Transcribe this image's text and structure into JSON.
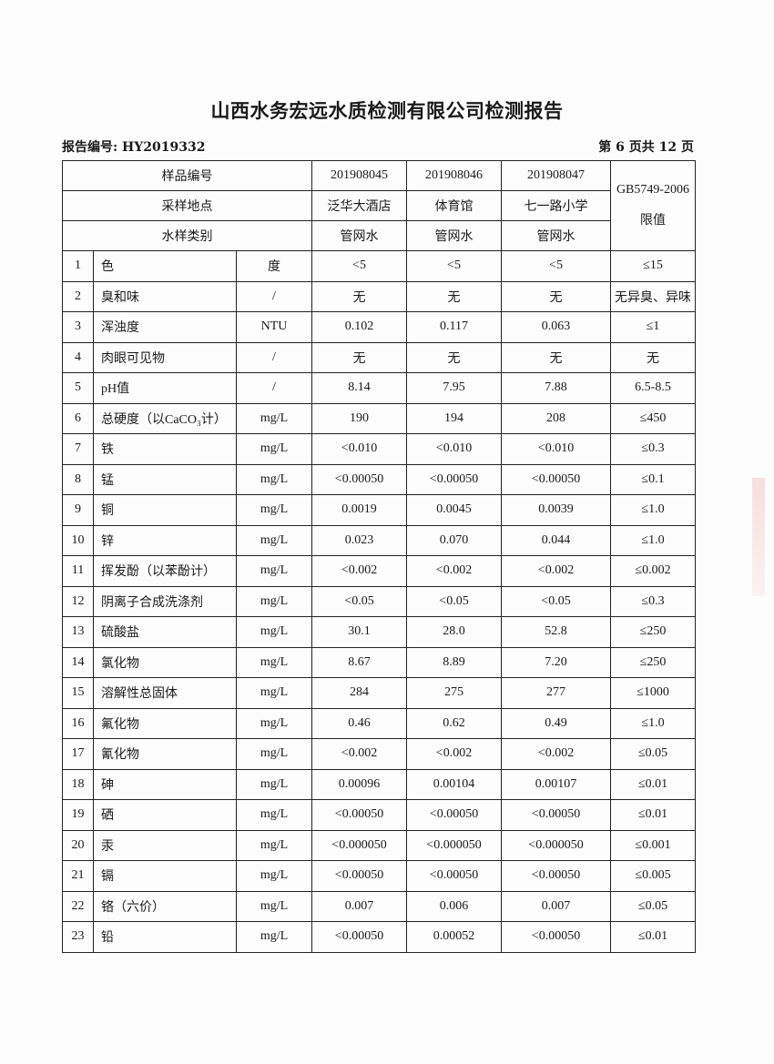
{
  "title": "山西水务宏远水质检测有限公司检测报告",
  "report_no": "报告编号: HY2019332",
  "page_info": "第 6 页共 12 页",
  "header": {
    "sample_id_label": "样品编号",
    "location_label": "采样地点",
    "type_label": "水样类别",
    "limit_label": "GB5749-2006 限值",
    "samples": [
      {
        "id": "201908045",
        "location": "泛华大酒店",
        "type": "管网水"
      },
      {
        "id": "201908046",
        "location": "体育馆",
        "type": "管网水"
      },
      {
        "id": "201908047",
        "location": "七一路小学",
        "type": "管网水"
      }
    ]
  },
  "rows": [
    {
      "no": "1",
      "item": "色",
      "unit": "度",
      "v": [
        "<5",
        "<5",
        "<5"
      ],
      "limit": "≤15"
    },
    {
      "no": "2",
      "item": "臭和味",
      "unit": "/",
      "v": [
        "无",
        "无",
        "无"
      ],
      "limit": "无异臭、异味"
    },
    {
      "no": "3",
      "item": "浑浊度",
      "unit": "NTU",
      "v": [
        "0.102",
        "0.117",
        "0.063"
      ],
      "limit": "≤1"
    },
    {
      "no": "4",
      "item": "肉眼可见物",
      "unit": "/",
      "v": [
        "无",
        "无",
        "无"
      ],
      "limit": "无"
    },
    {
      "no": "5",
      "item": "pH值",
      "unit": "/",
      "v": [
        "8.14",
        "7.95",
        "7.88"
      ],
      "limit": "6.5-8.5"
    },
    {
      "no": "6",
      "item": "总硬度（以CaCO₃计）",
      "unit": "mg/L",
      "v": [
        "190",
        "194",
        "208"
      ],
      "limit": "≤450"
    },
    {
      "no": "7",
      "item": "铁",
      "unit": "mg/L",
      "v": [
        "<0.010",
        "<0.010",
        "<0.010"
      ],
      "limit": "≤0.3"
    },
    {
      "no": "8",
      "item": "锰",
      "unit": "mg/L",
      "v": [
        "<0.00050",
        "<0.00050",
        "<0.00050"
      ],
      "limit": "≤0.1"
    },
    {
      "no": "9",
      "item": "铜",
      "unit": "mg/L",
      "v": [
        "0.0019",
        "0.0045",
        "0.0039"
      ],
      "limit": "≤1.0"
    },
    {
      "no": "10",
      "item": "锌",
      "unit": "mg/L",
      "v": [
        "0.023",
        "0.070",
        "0.044"
      ],
      "limit": "≤1.0"
    },
    {
      "no": "11",
      "item": "挥发酚（以苯酚计）",
      "unit": "mg/L",
      "v": [
        "<0.002",
        "<0.002",
        "<0.002"
      ],
      "limit": "≤0.002"
    },
    {
      "no": "12",
      "item": "阴离子合成洗涤剂",
      "unit": "mg/L",
      "v": [
        "<0.05",
        "<0.05",
        "<0.05"
      ],
      "limit": "≤0.3"
    },
    {
      "no": "13",
      "item": "硫酸盐",
      "unit": "mg/L",
      "v": [
        "30.1",
        "28.0",
        "52.8"
      ],
      "limit": "≤250"
    },
    {
      "no": "14",
      "item": "氯化物",
      "unit": "mg/L",
      "v": [
        "8.67",
        "8.89",
        "7.20"
      ],
      "limit": "≤250"
    },
    {
      "no": "15",
      "item": "溶解性总固体",
      "unit": "mg/L",
      "v": [
        "284",
        "275",
        "277"
      ],
      "limit": "≤1000"
    },
    {
      "no": "16",
      "item": "氟化物",
      "unit": "mg/L",
      "v": [
        "0.46",
        "0.62",
        "0.49"
      ],
      "limit": "≤1.0"
    },
    {
      "no": "17",
      "item": "氰化物",
      "unit": "mg/L",
      "v": [
        "<0.002",
        "<0.002",
        "<0.002"
      ],
      "limit": "≤0.05"
    },
    {
      "no": "18",
      "item": "砷",
      "unit": "mg/L",
      "v": [
        "0.00096",
        "0.00104",
        "0.00107"
      ],
      "limit": "≤0.01"
    },
    {
      "no": "19",
      "item": "硒",
      "unit": "mg/L",
      "v": [
        "<0.00050",
        "<0.00050",
        "<0.00050"
      ],
      "limit": "≤0.01"
    },
    {
      "no": "20",
      "item": "汞",
      "unit": "mg/L",
      "v": [
        "<0.000050",
        "<0.000050",
        "<0.000050"
      ],
      "limit": "≤0.001"
    },
    {
      "no": "21",
      "item": "镉",
      "unit": "mg/L",
      "v": [
        "<0.00050",
        "<0.00050",
        "<0.00050"
      ],
      "limit": "≤0.005"
    },
    {
      "no": "22",
      "item": "铬（六价）",
      "unit": "mg/L",
      "v": [
        "0.007",
        "0.006",
        "0.007"
      ],
      "limit": "≤0.05"
    },
    {
      "no": "23",
      "item": "铅",
      "unit": "mg/L",
      "v": [
        "<0.00050",
        "0.00052",
        "<0.00050"
      ],
      "limit": "≤0.01"
    }
  ]
}
